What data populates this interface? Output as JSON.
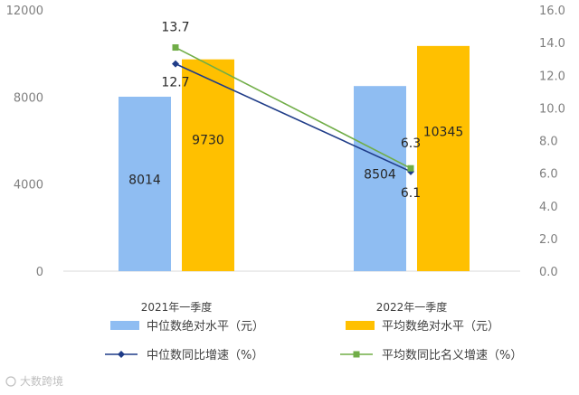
{
  "chart_data": {
    "type": "bar",
    "categories": [
      "2021年一季度",
      "2022年一季度"
    ],
    "series": [
      {
        "name": "中位数绝对水平（元）",
        "kind": "bar",
        "axis": "left",
        "color": "#8FBDF2",
        "values": [
          8014,
          8504
        ],
        "labels": [
          "8014",
          "8504"
        ]
      },
      {
        "name": "平均数绝对水平（元）",
        "kind": "bar",
        "axis": "left",
        "color": "#FFC000",
        "values": [
          9730,
          10345
        ],
        "labels": [
          "9730",
          "10345"
        ]
      },
      {
        "name": "中位数同比增速（%）",
        "kind": "line",
        "axis": "right",
        "color": "#1F3C88",
        "marker": "diamond",
        "values": [
          12.7,
          6.1
        ],
        "labels": [
          "12.7",
          "6.1"
        ]
      },
      {
        "name": "平均数同比名义增速（%）",
        "kind": "line",
        "axis": "right",
        "color": "#70AD47",
        "marker": "square",
        "values": [
          13.7,
          6.3
        ],
        "labels": [
          "13.7",
          "6.3"
        ]
      }
    ],
    "y_left": {
      "ylim": [
        0,
        12000
      ],
      "ticks": [
        "0",
        "4000",
        "8000",
        "12000"
      ]
    },
    "y_right": {
      "ylim": [
        0,
        16
      ],
      "ticks": [
        "0.0",
        "2.0",
        "4.0",
        "6.0",
        "8.0",
        "10.0",
        "12.0",
        "14.0",
        "16.0"
      ]
    },
    "legend_position": "bottom",
    "grid": false
  },
  "watermark": "大数跨境"
}
